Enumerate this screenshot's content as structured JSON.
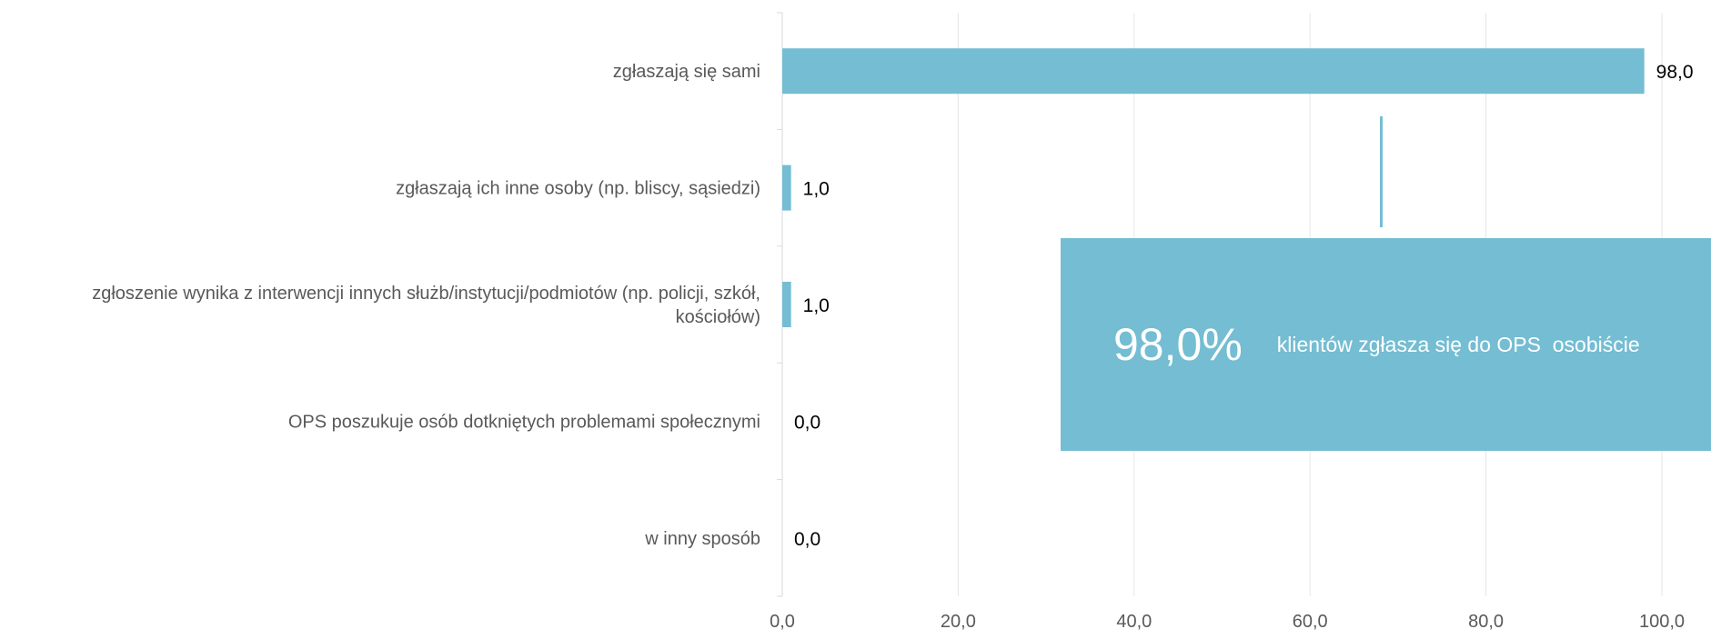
{
  "chart_data": {
    "type": "bar",
    "orientation": "horizontal",
    "categories": [
      "zgłaszają się sami",
      "zgłaszają ich inne osoby (np. bliscy, sąsiedzi)",
      [
        "zgłoszenie wynika z interwencji innych służb/instytucji/podmiotów (np. policji, szkół,",
        "kościołów)"
      ],
      "OPS poszukuje osób dotkniętych problemami społecznymi",
      "w inny sposób"
    ],
    "values": [
      98.0,
      1.0,
      1.0,
      0.0,
      0.0
    ],
    "value_labels": [
      "98,0",
      "1,0",
      "1,0",
      "0,0",
      "0,0"
    ],
    "xlim": [
      0,
      100
    ],
    "x_ticks": [
      "0,0",
      "20,0",
      "40,0",
      "60,0",
      "80,0",
      "100,0"
    ],
    "grid": true,
    "bar_color": "#74bdd3"
  },
  "callout": {
    "big_value": "98,0%",
    "text": "klientów zgłasza się do OPS  osobiście",
    "color": "#74bdd3"
  }
}
